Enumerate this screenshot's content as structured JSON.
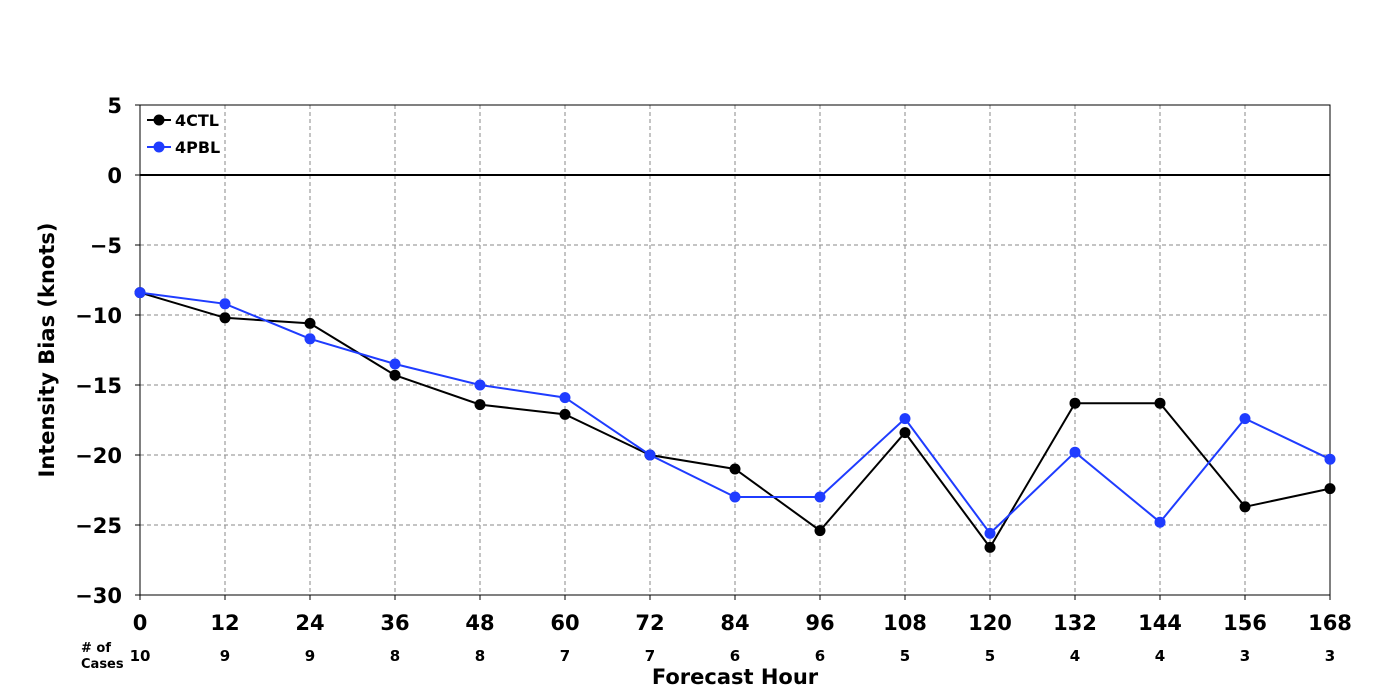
{
  "chart_data": {
    "type": "line",
    "title": "",
    "xlabel": "Forecast Hour",
    "ylabel": "Intensity Bias (knots)",
    "x": [
      0,
      12,
      24,
      36,
      48,
      60,
      72,
      84,
      96,
      108,
      120,
      132,
      144,
      156,
      168
    ],
    "xlim": [
      0,
      168
    ],
    "ylim": [
      -30,
      5
    ],
    "x_ticks": [
      0,
      12,
      24,
      36,
      48,
      60,
      72,
      84,
      96,
      108,
      120,
      132,
      144,
      156,
      168
    ],
    "y_ticks": [
      5,
      0,
      -5,
      -10,
      -15,
      -20,
      -25,
      -30
    ],
    "y_tick_labels": [
      "5",
      "0",
      "−5",
      "−10",
      "−15",
      "−20",
      "−25",
      "−30"
    ],
    "grid": true,
    "reference_line": 0,
    "legend_position": "top-left",
    "series": [
      {
        "name": "4CTL",
        "color": "#000000",
        "values": [
          -8.4,
          -10.2,
          -10.6,
          -14.3,
          -16.4,
          -17.1,
          -20.0,
          -21.0,
          -25.4,
          -18.4,
          -26.6,
          -16.3,
          -16.3,
          -23.7,
          -22.4
        ]
      },
      {
        "name": "4PBL",
        "color": "#1f3cff",
        "values": [
          -8.4,
          -9.2,
          -11.7,
          -13.5,
          -15.0,
          -15.9,
          -20.0,
          -23.0,
          -23.0,
          -17.4,
          -25.6,
          -19.8,
          -24.8,
          -17.4,
          -20.3
        ]
      }
    ],
    "cases_label_line1": "# of",
    "cases_label_line2": "Cases",
    "cases": [
      10,
      9,
      9,
      8,
      8,
      7,
      7,
      6,
      6,
      5,
      5,
      4,
      4,
      3,
      3
    ]
  }
}
